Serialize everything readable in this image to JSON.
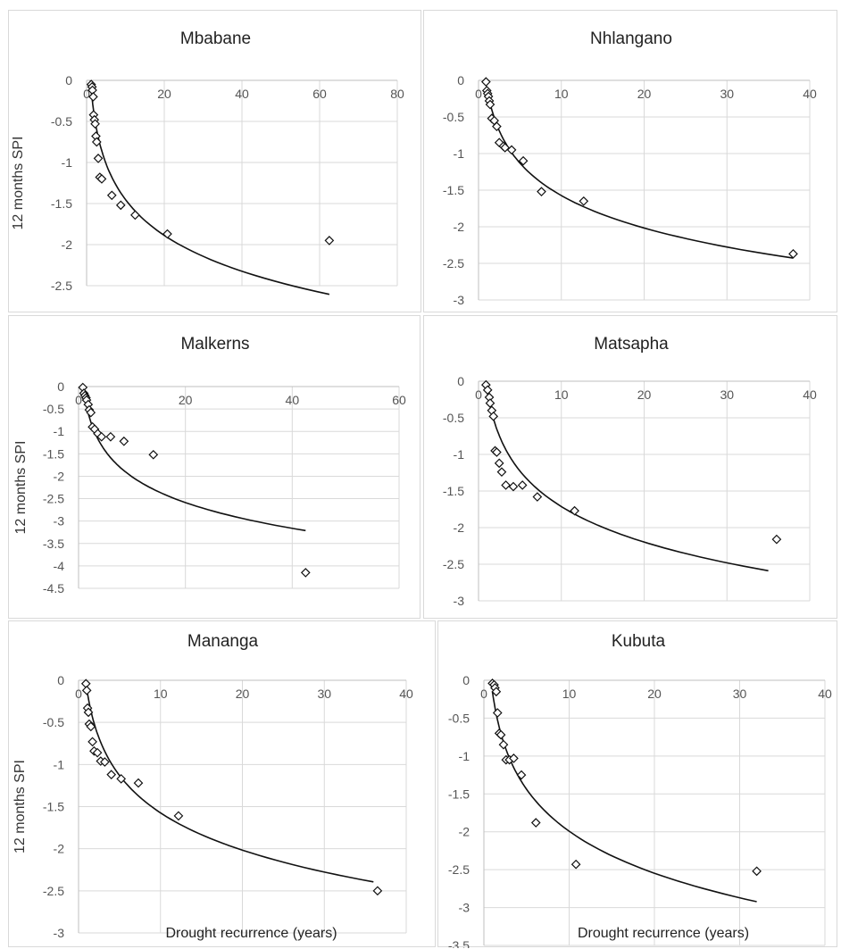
{
  "figure": {
    "ylabel_text": "12 months SPI",
    "xlabel_text": "Drought recurrence (years)"
  },
  "chart_data": [
    {
      "type": "scatter",
      "title": "Mbabane",
      "ylabel": "12 months SPI",
      "xlabel": "",
      "xlim": [
        0,
        80
      ],
      "ylim": [
        -2.5,
        0
      ],
      "xticks": [
        0,
        20,
        40,
        60,
        80
      ],
      "yticks": [
        0,
        -0.5,
        -1,
        -1.5,
        -2,
        -2.5
      ],
      "grid": true,
      "x": [
        1.2,
        1.4,
        1.5,
        1.7,
        1.8,
        2.0,
        2.2,
        2.4,
        2.6,
        3.0,
        3.4,
        3.9,
        6.5,
        8.8,
        12.5,
        20.8,
        62.5
      ],
      "y": [
        -0.05,
        -0.08,
        -0.12,
        -0.2,
        -0.42,
        -0.48,
        -0.53,
        -0.68,
        -0.75,
        -0.95,
        -1.18,
        -1.2,
        -1.4,
        -1.52,
        -1.64,
        -1.87,
        -1.95
      ],
      "trendline": {
        "x": [
          1,
          62.5
        ],
        "a": -0.0,
        "b": -0.63
      }
    },
    {
      "type": "scatter",
      "title": "Nhlangano",
      "ylabel": "",
      "xlabel": "",
      "xlim": [
        0,
        40
      ],
      "ylim": [
        -3,
        0
      ],
      "xticks": [
        0,
        10,
        20,
        30,
        40
      ],
      "yticks": [
        0,
        -0.5,
        -1,
        -1.5,
        -2,
        -2.5,
        -3
      ],
      "grid": true,
      "x": [
        0.9,
        1.0,
        1.1,
        1.2,
        1.3,
        1.4,
        1.6,
        1.9,
        2.2,
        2.5,
        3.0,
        3.2,
        4.0,
        5.4,
        7.6,
        12.7,
        38.0
      ],
      "y": [
        -0.02,
        -0.14,
        -0.18,
        -0.22,
        -0.28,
        -0.33,
        -0.52,
        -0.55,
        -0.63,
        -0.85,
        -0.9,
        -0.92,
        -0.95,
        -1.1,
        -1.52,
        -1.65,
        -2.37
      ],
      "trendline": {
        "x": [
          1,
          38
        ],
        "a": -0.1,
        "b": -0.64
      }
    },
    {
      "type": "scatter",
      "title": "Malkerns",
      "ylabel": "12 months SPI",
      "xlabel": "",
      "xlim": [
        0,
        60
      ],
      "ylim": [
        -4.5,
        0
      ],
      "xticks": [
        0,
        20,
        40,
        60
      ],
      "yticks": [
        0,
        -0.5,
        -1,
        -1.5,
        -2,
        -2.5,
        -3,
        -3.5,
        -4,
        -4.5
      ],
      "grid": true,
      "x": [
        0.8,
        1.0,
        1.2,
        1.4,
        1.5,
        1.8,
        2.0,
        2.3,
        2.6,
        3.0,
        3.6,
        4.3,
        6.0,
        8.5,
        14.0,
        42.5
      ],
      "y": [
        -0.02,
        -0.15,
        -0.2,
        -0.25,
        -0.3,
        -0.4,
        -0.52,
        -0.58,
        -0.9,
        -0.95,
        -1.05,
        -1.12,
        -1.12,
        -1.22,
        -1.52,
        -4.15
      ],
      "trendline": {
        "x": [
          1,
          42.5
        ],
        "a": -0.1,
        "b": -0.83
      }
    },
    {
      "type": "scatter",
      "title": "Matsapha",
      "ylabel": "",
      "xlabel": "",
      "xlim": [
        0,
        40
      ],
      "ylim": [
        -3,
        0
      ],
      "xticks": [
        0,
        10,
        20,
        30,
        40
      ],
      "yticks": [
        0,
        -0.5,
        -1,
        -1.5,
        -2,
        -2.5,
        -3
      ],
      "grid": true,
      "x": [
        0.9,
        1.1,
        1.3,
        1.4,
        1.6,
        1.8,
        2.0,
        2.2,
        2.5,
        2.8,
        3.3,
        4.2,
        5.3,
        7.1,
        11.6,
        36.0
      ],
      "y": [
        -0.05,
        -0.12,
        -0.22,
        -0.3,
        -0.4,
        -0.48,
        -0.95,
        -0.97,
        -1.12,
        -1.24,
        -1.42,
        -1.44,
        -1.42,
        -1.58,
        -1.77,
        -2.16
      ],
      "trendline": {
        "x": [
          1,
          35
        ],
        "a": -0.1,
        "b": -0.7
      }
    },
    {
      "type": "scatter",
      "title": "Mananga",
      "ylabel": "12 months SPI",
      "xlabel": "Drought recurrence (years)",
      "xlim": [
        0,
        40
      ],
      "ylim": [
        -3,
        0
      ],
      "xticks": [
        0,
        10,
        20,
        30,
        40
      ],
      "yticks": [
        0,
        -0.5,
        -1,
        -1.5,
        -2,
        -2.5,
        -3
      ],
      "grid": true,
      "x": [
        0.9,
        1.0,
        1.1,
        1.2,
        1.3,
        1.5,
        1.7,
        1.9,
        2.3,
        2.7,
        3.2,
        4.0,
        5.2,
        7.3,
        12.2,
        36.5
      ],
      "y": [
        -0.04,
        -0.12,
        -0.33,
        -0.38,
        -0.52,
        -0.55,
        -0.73,
        -0.84,
        -0.86,
        -0.96,
        -0.97,
        -1.12,
        -1.17,
        -1.22,
        -1.61,
        -2.5
      ],
      "trendline": {
        "x": [
          1,
          36
        ],
        "a": -0.1,
        "b": -0.64
      }
    },
    {
      "type": "scatter",
      "title": "Kubuta",
      "ylabel": "",
      "xlabel": "Drought recurrence (years)",
      "xlim": [
        0,
        40
      ],
      "ylim": [
        -3.5,
        0
      ],
      "xticks": [
        0,
        10,
        20,
        30,
        40
      ],
      "yticks": [
        0,
        -0.5,
        -1,
        -1.5,
        -2,
        -2.5,
        -3,
        -3.5
      ],
      "grid": true,
      "x": [
        1.0,
        1.2,
        1.3,
        1.45,
        1.6,
        1.8,
        2.0,
        2.3,
        2.6,
        3.0,
        3.5,
        4.4,
        6.1,
        10.8,
        32.0
      ],
      "y": [
        -0.04,
        -0.06,
        -0.1,
        -0.15,
        -0.43,
        -0.7,
        -0.72,
        -0.85,
        -1.05,
        -1.05,
        -1.03,
        -1.25,
        -1.88,
        -2.43,
        -2.52
      ],
      "trendline": {
        "x": [
          1,
          32
        ],
        "a": -0.15,
        "b": -0.8
      }
    }
  ]
}
